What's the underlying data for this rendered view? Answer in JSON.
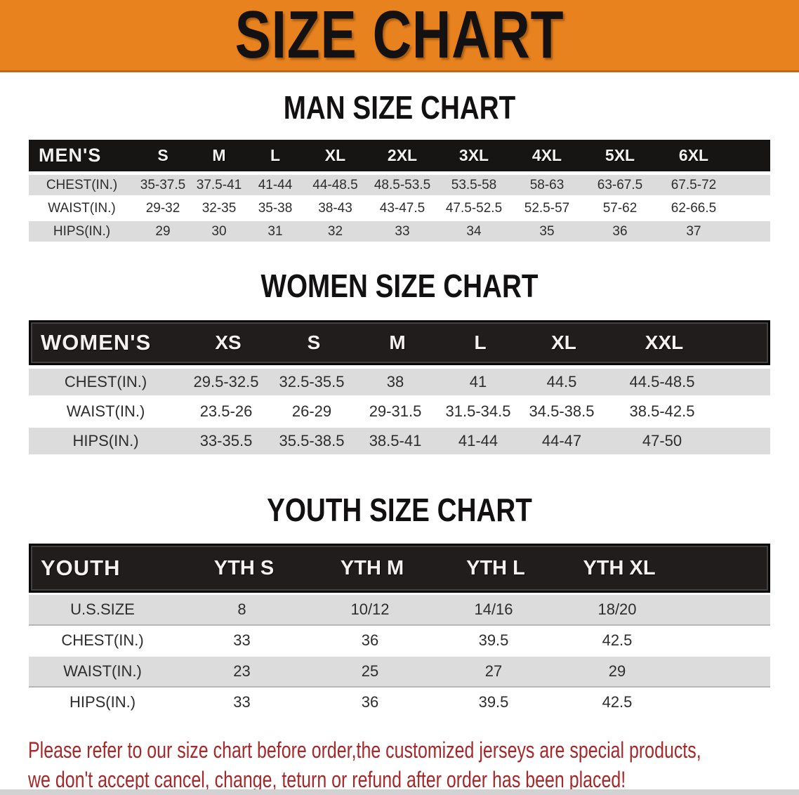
{
  "banner": {
    "title": "SIZE CHART"
  },
  "colors": {
    "banner_orange": "#E8821E",
    "header_black": "#171414",
    "header_black_inner": "#211D1D",
    "row_gray": "#DCDCDC",
    "disclaimer_red": "#A5282A",
    "bottom_strip_gray": "#D2D2D2"
  },
  "sections": [
    {
      "heading": "MAN SIZE CHART",
      "table": {
        "header": {
          "label": "MEN'S",
          "sizes": [
            "S",
            "M",
            "L",
            "XL",
            "2XL",
            "3XL",
            "4XL",
            "5XL",
            "6XL"
          ]
        },
        "rows": [
          {
            "label": "CHEST(IN.)",
            "values": [
              "35-37.5",
              "37.5-41",
              "41-44",
              "44-48.5",
              "48.5-53.5",
              "53.5-58",
              "58-63",
              "63-67.5",
              "67.5-72"
            ]
          },
          {
            "label": "WAIST(IN.)",
            "values": [
              "29-32",
              "32-35",
              "35-38",
              "38-43",
              "43-47.5",
              "47.5-52.5",
              "52.5-57",
              "57-62",
              "62-66.5"
            ]
          },
          {
            "label": "HIPS(IN.)",
            "values": [
              "29",
              "30",
              "31",
              "32",
              "33",
              "34",
              "35",
              "36",
              "37"
            ]
          }
        ]
      }
    },
    {
      "heading": "WOMEN SIZE CHART",
      "table": {
        "header": {
          "label": "WOMEN'S",
          "sizes": [
            "XS",
            "S",
            "M",
            "L",
            "XL",
            "XXL"
          ]
        },
        "rows": [
          {
            "label": "CHEST(IN.)",
            "values": [
              "29.5-32.5",
              "32.5-35.5",
              "38",
              "41",
              "44.5",
              "44.5-48.5"
            ]
          },
          {
            "label": "WAIST(IN.)",
            "values": [
              "23.5-26",
              "26-29",
              "29-31.5",
              "31.5-34.5",
              "34.5-38.5",
              "38.5-42.5"
            ]
          },
          {
            "label": "HIPS(IN.)",
            "values": [
              "33-35.5",
              "35.5-38.5",
              "38.5-41",
              "41-44",
              "44-47",
              "47-50"
            ]
          }
        ]
      }
    },
    {
      "heading": "YOUTH SIZE CHART",
      "table": {
        "header": {
          "label": "YOUTH",
          "sizes": [
            "YTH S",
            "YTH M",
            "YTH L",
            "YTH XL"
          ]
        },
        "rows": [
          {
            "label": "U.S.SIZE",
            "values": [
              "8",
              "10/12",
              "14/16",
              "18/20"
            ]
          },
          {
            "label": "CHEST(IN.)",
            "values": [
              "33",
              "36",
              "39.5",
              "42.5"
            ]
          },
          {
            "label": "WAIST(IN.)",
            "values": [
              "23",
              "25",
              "27",
              "29"
            ]
          },
          {
            "label": "HIPS(IN.)",
            "values": [
              "33",
              "36",
              "39.5",
              "42.5"
            ]
          }
        ]
      }
    }
  ],
  "disclaimer": {
    "line1": "Please refer to our size chart before order,the customized jerseys are special products,",
    "line2": "we don't accept cancel, change, teturn or refund after order has been placed!"
  }
}
